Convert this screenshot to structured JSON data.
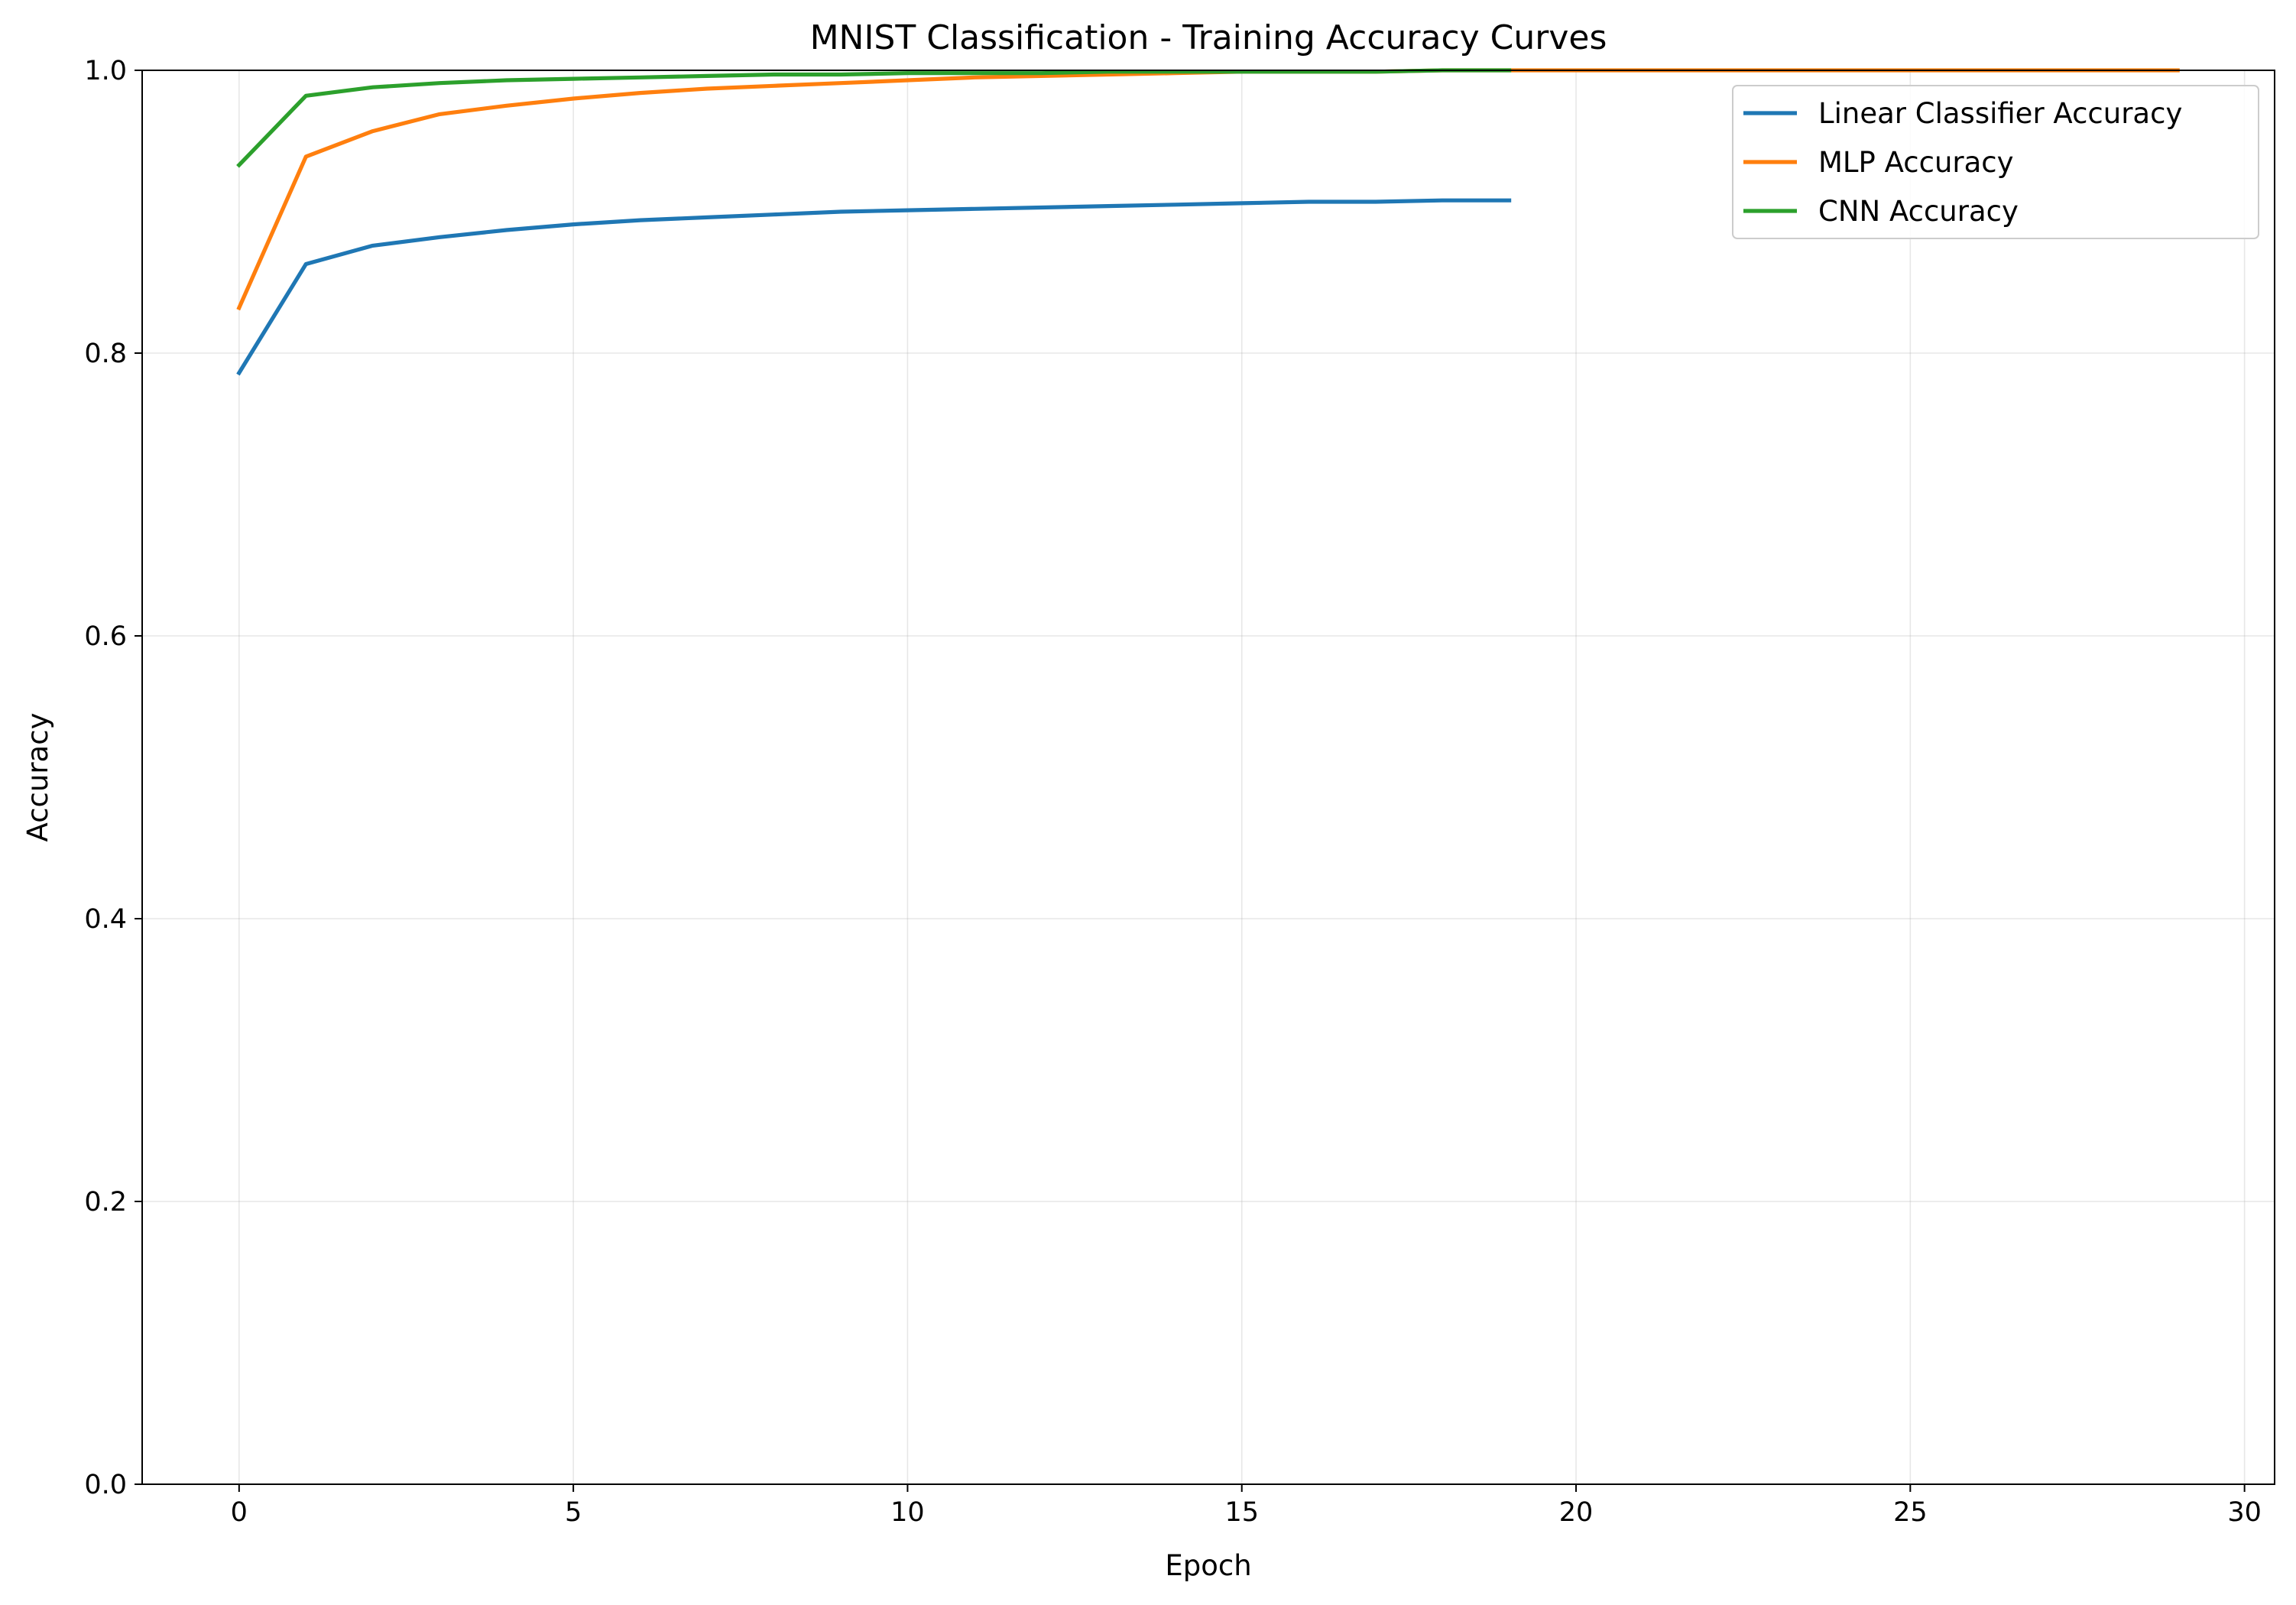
{
  "chart_data": {
    "type": "line",
    "title": "MNIST Classification - Training Accuracy Curves",
    "xlabel": "Epoch",
    "ylabel": "Accuracy",
    "xlim": [
      -1.45,
      30.45
    ],
    "ylim": [
      0.0,
      1.0
    ],
    "xticks": [
      0,
      5,
      10,
      15,
      20,
      25,
      30
    ],
    "yticks": [
      0.0,
      0.2,
      0.4,
      0.6,
      0.8,
      1.0
    ],
    "xtick_labels": [
      "0",
      "5",
      "10",
      "15",
      "20",
      "25",
      "30"
    ],
    "ytick_labels": [
      "0.0",
      "0.2",
      "0.4",
      "0.6",
      "0.8",
      "1.0"
    ],
    "grid": true,
    "legend_position": "top-right",
    "series": [
      {
        "name": "Linear Classifier Accuracy",
        "color": "#1f77b4",
        "x": [
          0,
          1,
          2,
          3,
          4,
          5,
          6,
          7,
          8,
          9,
          10,
          11,
          12,
          13,
          14,
          15,
          16,
          17,
          18,
          19
        ],
        "y": [
          0.786,
          0.863,
          0.876,
          0.882,
          0.887,
          0.891,
          0.894,
          0.896,
          0.898,
          0.9,
          0.901,
          0.902,
          0.903,
          0.904,
          0.905,
          0.906,
          0.907,
          0.907,
          0.908,
          0.908
        ]
      },
      {
        "name": "MLP Accuracy",
        "color": "#ff7f0e",
        "x": [
          0,
          1,
          2,
          3,
          4,
          5,
          6,
          7,
          8,
          9,
          10,
          11,
          12,
          13,
          14,
          15,
          16,
          17,
          18,
          19,
          20,
          21,
          22,
          23,
          24,
          25,
          26,
          27,
          28,
          29
        ],
        "y": [
          0.832,
          0.939,
          0.957,
          0.969,
          0.975,
          0.98,
          0.984,
          0.987,
          0.989,
          0.991,
          0.993,
          0.995,
          0.996,
          0.997,
          0.998,
          0.999,
          0.999,
          0.999,
          1.0,
          1.0,
          1.0,
          1.0,
          1.0,
          1.0,
          1.0,
          1.0,
          1.0,
          1.0,
          1.0,
          1.0
        ]
      },
      {
        "name": "CNN Accuracy",
        "color": "#2ca02c",
        "x": [
          0,
          1,
          2,
          3,
          4,
          5,
          6,
          7,
          8,
          9,
          10,
          11,
          12,
          13,
          14,
          15,
          16,
          17,
          18,
          19
        ],
        "y": [
          0.933,
          0.982,
          0.988,
          0.991,
          0.993,
          0.994,
          0.995,
          0.996,
          0.997,
          0.997,
          0.998,
          0.998,
          0.998,
          0.999,
          0.999,
          0.999,
          0.999,
          0.999,
          1.0,
          1.0
        ]
      }
    ]
  }
}
